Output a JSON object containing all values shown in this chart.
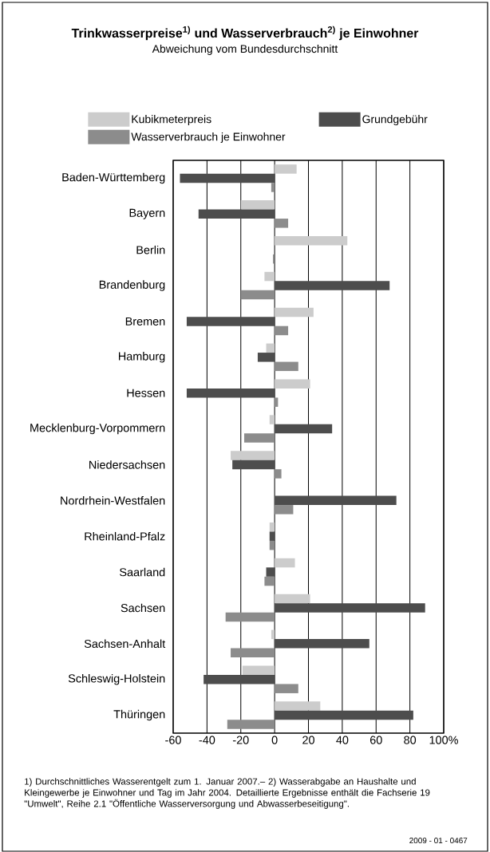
{
  "chart_data": {
    "type": "bar",
    "orientation": "horizontal",
    "title": "Trinkwasserpreise$^{1)}$ und Wasserverbrauch$^{2)}$ je Einwohner",
    "subtitle": "Abweichung vom Bundesdurchschnitt",
    "categories": [
      "Baden-Württemberg",
      "Bayern",
      "Berlin",
      "Brandenburg",
      "Bremen",
      "Hamburg",
      "Hessen",
      "Mecklenburg-Vorpommern",
      "Niedersachsen",
      "Nordrhein-Westfalen",
      "Rheinland-Pfalz",
      "Saarland",
      "Sachsen",
      "Sachsen-Anhalt",
      "Schleswig-Holstein",
      "Thüringen"
    ],
    "series": [
      {
        "name": "Kubikmeterpreis",
        "color": "#cccccc",
        "values": [
          13,
          -20,
          43,
          -6,
          23,
          -5,
          21,
          -3,
          -26,
          null,
          -3,
          12,
          21,
          -2,
          -19,
          27
        ]
      },
      {
        "name": "Grundgebühr",
        "color": "#4d4d4d",
        "values": [
          -56,
          -45,
          null,
          68,
          -52,
          -10,
          -52,
          34,
          -25,
          72,
          -3,
          -5,
          89,
          56,
          -42,
          82
        ]
      },
      {
        "name": "Wasserverbrauch je Einwohner",
        "color": "#8c8c8c",
        "values": [
          -2,
          8,
          -1,
          -20,
          8,
          14,
          2,
          -18,
          4,
          11,
          -3,
          -6,
          -29,
          -26,
          14,
          -28
        ]
      }
    ],
    "xlim": [
      -60,
      100
    ],
    "xticks": [
      -60,
      -40,
      -20,
      0,
      20,
      40,
      60,
      80,
      {
        "value": 100,
        "label": "100%"
      }
    ],
    "grid": "x",
    "legend": "top",
    "annotations": [
      "1) Durchschnittliches Wasserentgelt zum 1. Januar 2007.– 2) Wasserabgabe an Haushalte und Kleingewerbe je Einwohner und Tag im Jahr 2004. Detaillierte Ergebnisse enthält die Fachserie 19 \"Umwelt\", Reihe 2.1 \"Öffentliche Wasserversorgung und Abwasserbeseitigung\".",
      "2009 - 01 - 0467"
    ]
  }
}
